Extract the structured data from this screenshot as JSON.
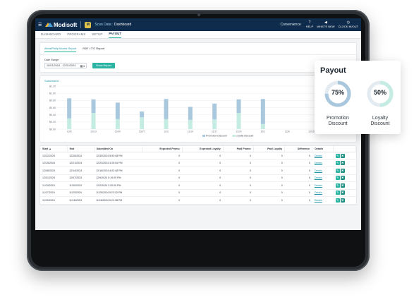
{
  "app": {
    "brand": "Modisoft",
    "badge": "M",
    "breadcrumb_section": "Scan Data",
    "breadcrumb_page": "Dashboard",
    "store": "Convenience",
    "top_buttons": [
      {
        "label": "HELP",
        "icon": "help-icon",
        "glyph": "?"
      },
      {
        "label": "WHAT'S NEW",
        "icon": "megaphone-icon",
        "glyph": "◀"
      },
      {
        "label": "CLOCK IN/OUT",
        "icon": "clock-icon",
        "glyph": "◷"
      }
    ]
  },
  "nav": {
    "tabs": [
      {
        "label": "DASHBOARD",
        "active": false
      },
      {
        "label": "PROGRAMS",
        "active": false
      },
      {
        "label": "SETUP",
        "active": false
      },
      {
        "label": "PAYOUT",
        "active": true
      }
    ]
  },
  "subtabs": [
    {
      "label": "Altria/Philip Morris Report",
      "active": true
    },
    {
      "label": "RJR / ITG Report",
      "active": false
    }
  ],
  "filters": {
    "date_range_label": "Date Range",
    "date_range_value": "10/01/2024 - 12/31/2024",
    "show_button": "Show Report"
  },
  "chart_data": {
    "type": "bar",
    "title": "Submission",
    "categories": [
      "10/6",
      "10/13",
      "10/20",
      "10/27",
      "11/3",
      "11/10",
      "11/17",
      "11/24",
      "12/1",
      "12/8",
      "12/15",
      "12/22"
    ],
    "y_ticks": [
      "$0.00",
      "$0.20",
      "$0.40",
      "$0.60",
      "$0.80",
      "$1.00",
      "$1.20"
    ],
    "ylim": [
      0,
      1.2
    ],
    "series": [
      {
        "name": "Promotion Discount",
        "color": "#a9c8dd",
        "values": [
          0.56,
          0.38,
          0.46,
          0.16,
          0.56,
          0.36,
          0.44,
          0.38,
          0.7,
          0,
          0,
          0
        ]
      },
      {
        "name": "Loyalty Discount",
        "color": "#c5ece2",
        "values": [
          0.3,
          0.45,
          0.28,
          0.33,
          0.28,
          0.26,
          0.27,
          0.45,
          0.14,
          0,
          0,
          0
        ]
      }
    ],
    "legend_position": "bottom",
    "grid": true
  },
  "table": {
    "columns": [
      "Start",
      "End",
      "Submitted On",
      "Expected Promo",
      "Expected Loyalty",
      "Paid Promo",
      "Paid Loyalty",
      "Difference",
      "Details"
    ],
    "details_label": "Details",
    "rows": [
      {
        "start": "12/22/2024",
        "end": "12/28/2024",
        "submitted": "12/30/2024 5:53:08 PM",
        "exp_promo": "0",
        "exp_loyalty": "0",
        "paid_promo": "0",
        "paid_loyalty": "0",
        "difference": "0"
      },
      {
        "start": "12/15/2024",
        "end": "12/21/2024",
        "submitted": "12/23/2024 3:25:54 PM",
        "exp_promo": "0",
        "exp_loyalty": "0",
        "paid_promo": "0",
        "paid_loyalty": "0",
        "difference": "0"
      },
      {
        "start": "12/08/2024",
        "end": "12/14/2024",
        "submitted": "12/16/2024 4:02:48 PM",
        "exp_promo": "0",
        "exp_loyalty": "0",
        "paid_promo": "0",
        "paid_loyalty": "0",
        "difference": "0"
      },
      {
        "start": "12/01/2024",
        "end": "12/07/2024",
        "submitted": "12/9/2024 5:19:09 PM",
        "exp_promo": "0",
        "exp_loyalty": "0",
        "paid_promo": "0",
        "paid_loyalty": "0",
        "difference": "0"
      },
      {
        "start": "11/24/2024",
        "end": "11/30/2024",
        "submitted": "12/2/2024 3:20:05 PM",
        "exp_promo": "0",
        "exp_loyalty": "0",
        "paid_promo": "0",
        "paid_loyalty": "0",
        "difference": "0"
      },
      {
        "start": "11/17/2024",
        "end": "11/23/2024",
        "submitted": "11/25/2024 5:23:32 PM",
        "exp_promo": "0",
        "exp_loyalty": "0",
        "paid_promo": "0",
        "paid_loyalty": "0",
        "difference": "0"
      },
      {
        "start": "11/10/2024",
        "end": "11/16/2024",
        "submitted": "11/18/2024 5:22:38 PM",
        "exp_promo": "0",
        "exp_loyalty": "0",
        "paid_promo": "0",
        "paid_loyalty": "0",
        "difference": "0"
      }
    ]
  },
  "payout": {
    "title": "Payout",
    "items": [
      {
        "pct_label": "75%",
        "fraction": 0.75,
        "label_line1": "Promotion",
        "label_line2": "Discount",
        "color": "#a9c8dd"
      },
      {
        "pct_label": "50%",
        "fraction": 0.5,
        "label_line1": "Loyalty",
        "label_line2": "Discount",
        "color": "#c5ece2"
      }
    ]
  },
  "colors": {
    "topbar": "#0f2c4c",
    "accent": "#2bb3a3",
    "link": "#2196a8"
  }
}
